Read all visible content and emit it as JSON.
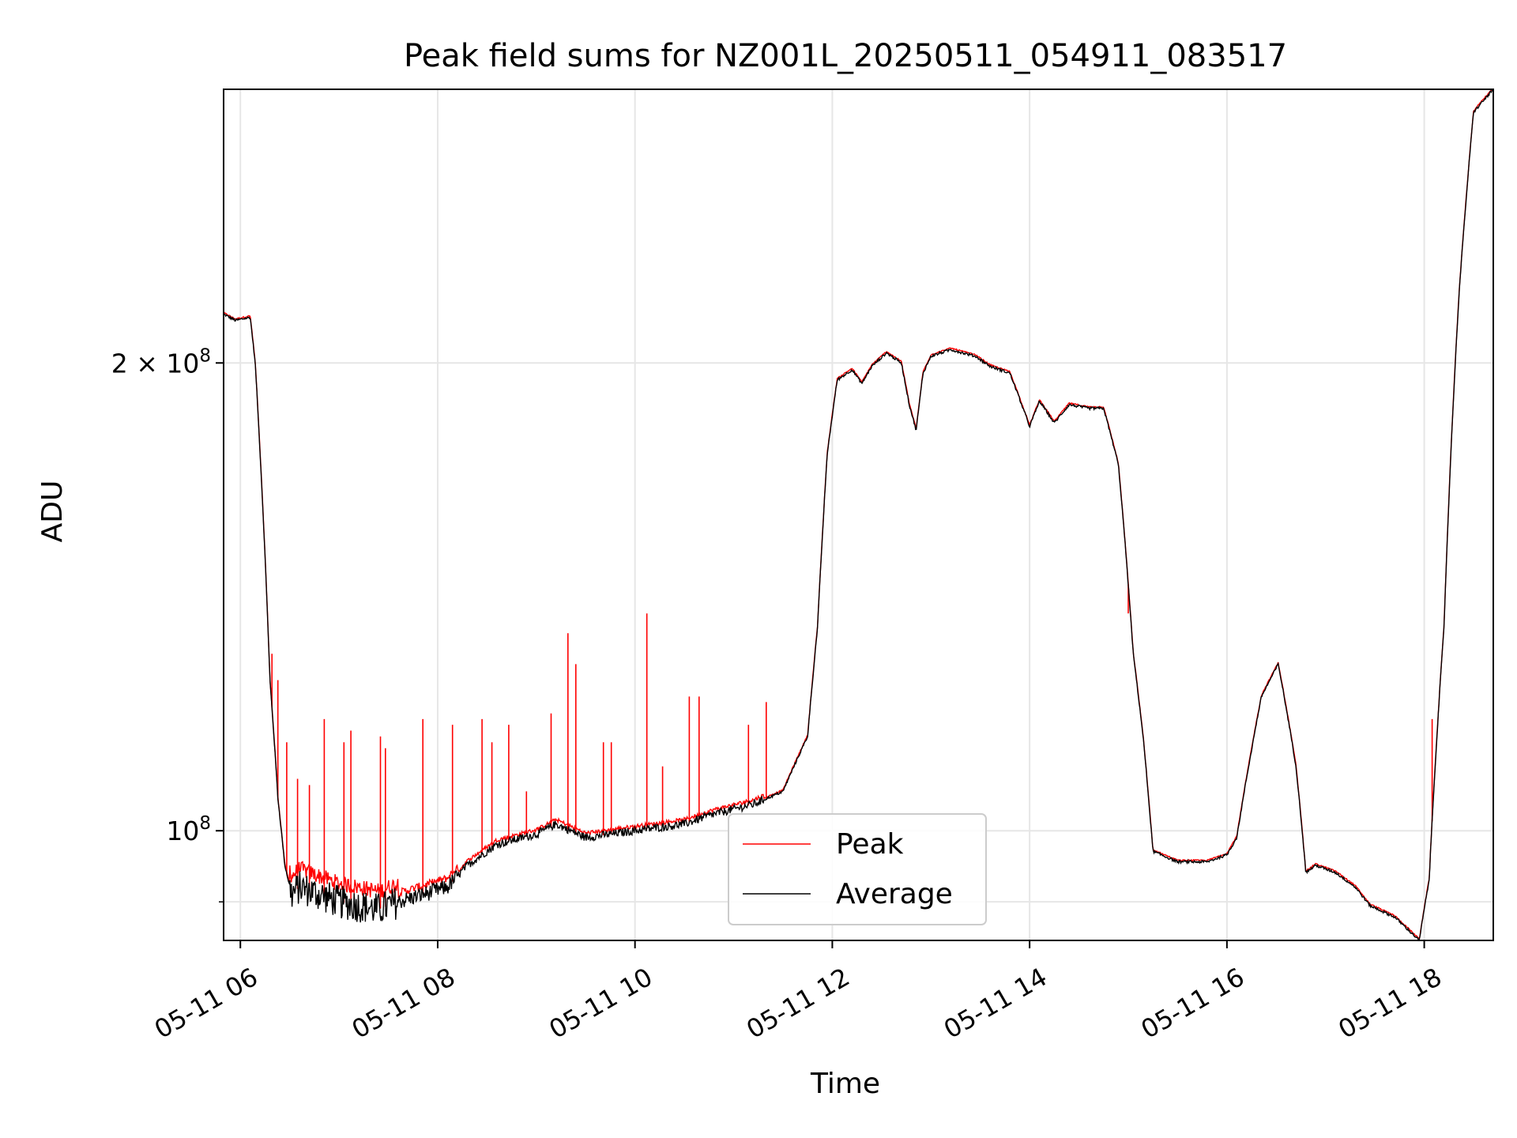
{
  "chart_data": {
    "type": "line",
    "title": "Peak field sums for NZ001L_20250511_054911_083517",
    "xlabel": "Time",
    "ylabel": "ADU",
    "x_unit": "hours (local time on 05-11)",
    "xlim": [
      5.83,
      18.7
    ],
    "ylim": [
      85000000,
      300000000
    ],
    "y_scale": "log",
    "grid": true,
    "legend_position": "lower center",
    "x_ticks": [
      {
        "value": 6,
        "label": "05-11 06"
      },
      {
        "value": 8,
        "label": "05-11 08"
      },
      {
        "value": 10,
        "label": "05-11 10"
      },
      {
        "value": 12,
        "label": "05-11 12"
      },
      {
        "value": 14,
        "label": "05-11 14"
      },
      {
        "value": 16,
        "label": "05-11 16"
      },
      {
        "value": 18,
        "label": "05-11 18"
      }
    ],
    "y_ticks": [
      {
        "value": 100000000,
        "base": "10",
        "exp": "8",
        "prefix": ""
      },
      {
        "value": 200000000,
        "base": "10",
        "exp": "8",
        "prefix": "2 × "
      }
    ],
    "y_minor_ticks": [
      90000000
    ],
    "series": [
      {
        "name": "Peak",
        "color": "#ff0000"
      },
      {
        "name": "Average",
        "color": "#000000"
      }
    ],
    "average_points": [
      [
        5.83,
        215000000
      ],
      [
        5.95,
        213000000
      ],
      [
        6.1,
        214000000
      ],
      [
        6.15,
        200000000
      ],
      [
        6.22,
        165000000
      ],
      [
        6.3,
        125000000
      ],
      [
        6.38,
        105000000
      ],
      [
        6.45,
        95000000
      ],
      [
        6.52,
        91000000
      ],
      [
        6.6,
        92000000
      ],
      [
        7.0,
        90000000
      ],
      [
        7.4,
        89000000
      ],
      [
        7.6,
        90000000
      ],
      [
        8.1,
        92000000
      ],
      [
        8.3,
        95000000
      ],
      [
        8.6,
        98000000
      ],
      [
        9.0,
        99500000
      ],
      [
        9.2,
        101000000
      ],
      [
        9.5,
        99000000
      ],
      [
        10.0,
        100000000
      ],
      [
        10.5,
        101000000
      ],
      [
        10.8,
        102500000
      ],
      [
        11.2,
        104000000
      ],
      [
        11.5,
        106000000
      ],
      [
        11.75,
        115000000
      ],
      [
        11.85,
        135000000
      ],
      [
        11.95,
        175000000
      ],
      [
        12.05,
        195000000
      ],
      [
        12.2,
        198000000
      ],
      [
        12.3,
        194000000
      ],
      [
        12.4,
        199000000
      ],
      [
        12.55,
        203000000
      ],
      [
        12.7,
        200000000
      ],
      [
        12.78,
        188000000
      ],
      [
        12.85,
        181000000
      ],
      [
        12.92,
        197000000
      ],
      [
        13.0,
        202000000
      ],
      [
        13.2,
        204000000
      ],
      [
        13.45,
        202000000
      ],
      [
        13.6,
        199000000
      ],
      [
        13.8,
        197000000
      ],
      [
        14.0,
        182000000
      ],
      [
        14.1,
        189000000
      ],
      [
        14.25,
        183000000
      ],
      [
        14.4,
        188000000
      ],
      [
        14.6,
        187000000
      ],
      [
        14.75,
        187000000
      ],
      [
        14.9,
        172000000
      ],
      [
        15.05,
        130000000
      ],
      [
        15.15,
        115000000
      ],
      [
        15.25,
        97000000
      ],
      [
        15.5,
        95500000
      ],
      [
        15.8,
        95500000
      ],
      [
        16.0,
        96500000
      ],
      [
        16.1,
        99000000
      ],
      [
        16.22,
        110000000
      ],
      [
        16.35,
        122000000
      ],
      [
        16.52,
        128000000
      ],
      [
        16.7,
        110000000
      ],
      [
        16.8,
        94000000
      ],
      [
        16.9,
        95000000
      ],
      [
        17.1,
        94000000
      ],
      [
        17.3,
        92000000
      ],
      [
        17.45,
        89500000
      ],
      [
        17.7,
        88000000
      ],
      [
        17.95,
        85000000
      ],
      [
        18.05,
        93000000
      ],
      [
        18.2,
        135000000
      ],
      [
        18.35,
        220000000
      ],
      [
        18.5,
        290000000
      ],
      [
        18.7,
        300000000
      ]
    ],
    "peak_spikes": [
      [
        6.32,
        130000000
      ],
      [
        6.38,
        125000000
      ],
      [
        6.47,
        114000000
      ],
      [
        6.58,
        108000000
      ],
      [
        6.7,
        107000000
      ],
      [
        6.85,
        118000000
      ],
      [
        7.05,
        114000000
      ],
      [
        7.12,
        116000000
      ],
      [
        7.42,
        115000000
      ],
      [
        7.47,
        113000000
      ],
      [
        7.85,
        118000000
      ],
      [
        8.15,
        117000000
      ],
      [
        8.45,
        118000000
      ],
      [
        8.55,
        114000000
      ],
      [
        8.72,
        117000000
      ],
      [
        8.9,
        106000000
      ],
      [
        9.15,
        119000000
      ],
      [
        9.32,
        134000000
      ],
      [
        9.4,
        128000000
      ],
      [
        9.68,
        114000000
      ],
      [
        9.76,
        114000000
      ],
      [
        10.12,
        138000000
      ],
      [
        10.28,
        110000000
      ],
      [
        10.55,
        122000000
      ],
      [
        10.65,
        122000000
      ],
      [
        11.15,
        117000000
      ],
      [
        11.33,
        121000000
      ],
      [
        15.0,
        138000000
      ],
      [
        18.08,
        118000000
      ]
    ]
  }
}
